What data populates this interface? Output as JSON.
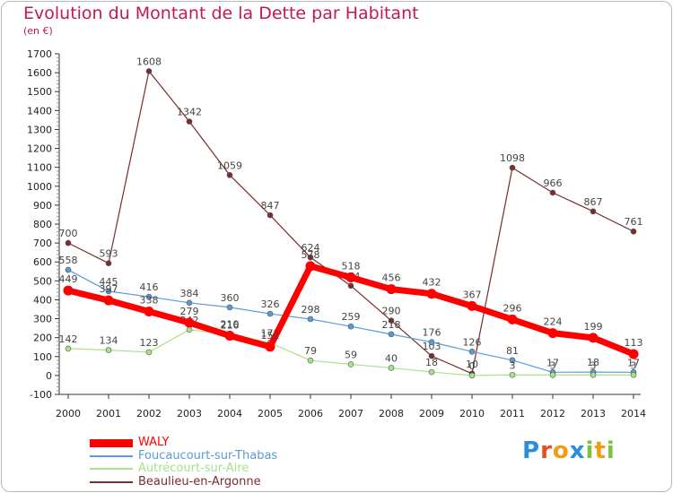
{
  "header": {
    "title": "Evolution du Montant de la Dette par Habitant",
    "subtitle": "(en €)"
  },
  "chart_data": {
    "type": "line",
    "title": "Evolution du Montant de la Dette par Habitant",
    "subtitle": "(en €)",
    "xlabel": "",
    "ylabel": "",
    "categories": [
      "2000",
      "2001",
      "2002",
      "2003",
      "2004",
      "2005",
      "2006",
      "2007",
      "2008",
      "2009",
      "2010",
      "2011",
      "2012",
      "2013",
      "2014"
    ],
    "ylim": [
      -100,
      1700
    ],
    "yticks": [
      -100,
      0,
      100,
      200,
      300,
      400,
      500,
      600,
      700,
      800,
      900,
      1000,
      1100,
      1200,
      1300,
      1400,
      1500,
      1600,
      1700
    ],
    "grid": false,
    "legend": "bottom-left",
    "series": [
      {
        "name": "Beaulieu-en-Argonne",
        "color": "#7b2c2c",
        "values": [
          700,
          593,
          1608,
          1342,
          1059,
          847,
          624,
          474,
          290,
          103,
          10,
          1098,
          966,
          867,
          761
        ]
      },
      {
        "name": "Foucaucourt-sur-Thabas",
        "color": "#5a9bd5",
        "values": [
          558,
          445,
          416,
          384,
          360,
          326,
          298,
          259,
          218,
          176,
          126,
          81,
          17,
          18,
          17
        ]
      },
      {
        "name": "Autrécourt-sur-Aire",
        "color": "#a8e28a",
        "values": [
          142,
          134,
          123,
          242,
          216,
          173,
          79,
          59,
          40,
          18,
          0,
          3,
          3,
          3,
          3
        ]
      },
      {
        "name": "WALY",
        "color": "#ff0000",
        "values": [
          449,
          397,
          338,
          279,
          210,
          152,
          578,
          518,
          456,
          432,
          367,
          296,
          224,
          199,
          113
        ]
      }
    ]
  },
  "legend": {
    "items": [
      {
        "label": "WALY",
        "color": "#ff0000"
      },
      {
        "label": "Foucaucourt-sur-Thabas",
        "color": "#5a9bd5"
      },
      {
        "label": "Autrécourt-sur-Aire",
        "color": "#a8e28a"
      },
      {
        "label": "Beaulieu-en-Argonne",
        "color": "#7b2c2c"
      }
    ]
  },
  "logo": {
    "letters": [
      "P",
      "r",
      "o",
      "x",
      "i",
      "t",
      "i"
    ],
    "colors": [
      "#2a8fd8",
      "#e84e1b",
      "#f39c12",
      "#2a8fd8",
      "#7cc242",
      "#f39c12",
      "#7cc242"
    ]
  }
}
